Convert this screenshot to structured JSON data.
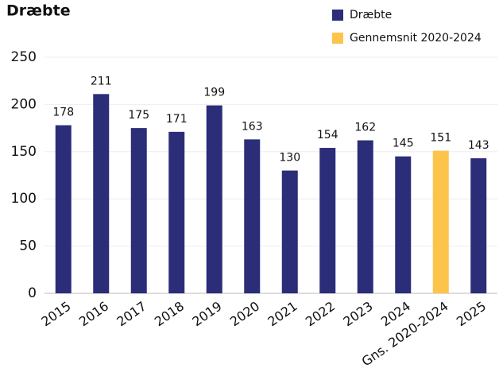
{
  "chart_data": {
    "type": "bar",
    "title": "Dræbte",
    "categories": [
      "2015",
      "2016",
      "2017",
      "2018",
      "2019",
      "2020",
      "2021",
      "2022",
      "2023",
      "2024",
      "Gns. 2020-2024",
      "2025"
    ],
    "series": [
      {
        "name": "Dræbte",
        "color": "#2b2d78",
        "values": [
          178,
          211,
          175,
          171,
          199,
          163,
          130,
          154,
          162,
          145,
          null,
          143
        ]
      },
      {
        "name": "Gennemsnit 2020-2024",
        "color": "#fcc44a",
        "values": [
          null,
          null,
          null,
          null,
          null,
          null,
          null,
          null,
          null,
          null,
          151,
          null
        ]
      }
    ],
    "ylim": [
      0,
      250
    ],
    "yticks": [
      0,
      50,
      100,
      150,
      200,
      250
    ],
    "grid": true,
    "legend": "top-right"
  }
}
